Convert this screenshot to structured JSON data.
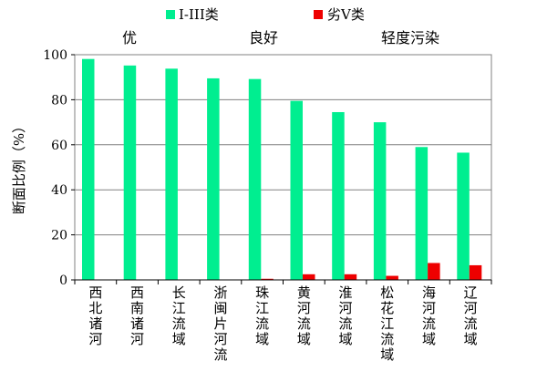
{
  "chart_data": {
    "type": "bar",
    "ylabel": "断面比例（%）",
    "ylim": [
      0,
      100
    ],
    "yticks": [
      "0",
      "20",
      "40",
      "60",
      "80",
      "100"
    ],
    "grid": true,
    "legend_position": "top",
    "categories": [
      "西北诸河",
      "西南诸河",
      "长江流域",
      "浙闽片河流",
      "珠江流域",
      "黄河流域",
      "淮河流域",
      "松花江流域",
      "海河流域",
      "辽河流域"
    ],
    "series": [
      {
        "name": "I-III类",
        "color": "#00ee90",
        "values": [
          98.1,
          95.2,
          93.8,
          89.5,
          89.2,
          79.5,
          74.5,
          70.0,
          59.0,
          56.5
        ]
      },
      {
        "name": "劣V类",
        "color": "#ee0000",
        "values": [
          0,
          0,
          0,
          0,
          0.5,
          2.5,
          2.5,
          1.8,
          7.5,
          6.5
        ]
      }
    ],
    "annotations": [
      "优",
      "良好",
      "轻度污染"
    ]
  }
}
